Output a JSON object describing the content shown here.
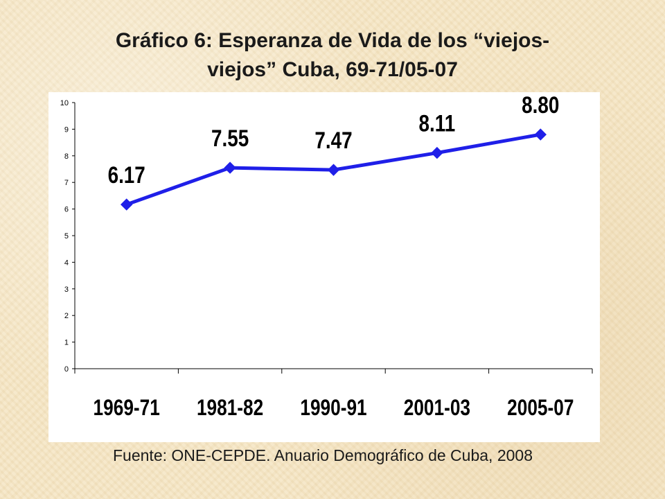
{
  "chart_data": {
    "type": "line",
    "title_lines": [
      "Gráfico 6: Esperanza de Vida de los “viejos-",
      "viejos” Cuba, 69-71/05-07"
    ],
    "categories": [
      "1969-71",
      "1981-82",
      "1990-91",
      "2001-03",
      "2005-07"
    ],
    "series": [
      {
        "name": "Esperanza de Vida",
        "values": [
          6.17,
          7.55,
          7.47,
          8.11,
          8.8
        ],
        "labels": [
          "6.17",
          "7.55",
          "7.47",
          "8.11",
          "8.80"
        ]
      }
    ],
    "yticks": [
      "0",
      "1",
      "2",
      "3",
      "4",
      "5",
      "6",
      "7",
      "8",
      "9",
      "10"
    ],
    "ylim": [
      0,
      10
    ],
    "xlabel": "",
    "ylabel": "",
    "grid": false,
    "line_color": "#1f1fe8",
    "source": "Fuente: ONE-CEPDE. Anuario Demográfico de Cuba, 2008"
  }
}
